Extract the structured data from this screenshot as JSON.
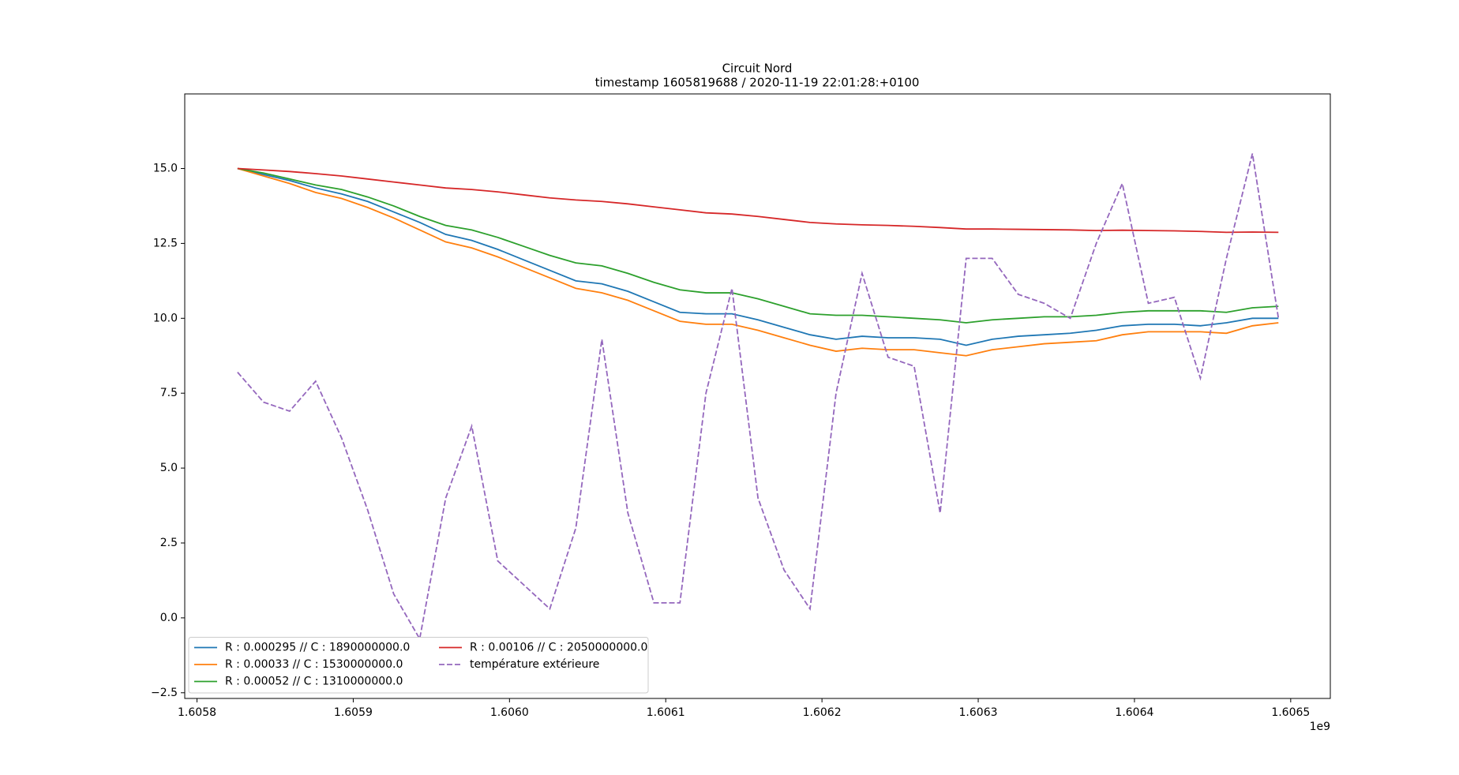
{
  "chart_data": {
    "type": "line",
    "title": "Circuit Nord",
    "subtitle": "timestamp 1605819688 / 2020-11-19 22:01:28:+0100",
    "x_offset_label": "1e9",
    "xlim": [
      1605792155,
      1606525350
    ],
    "ylim": [
      -2.69,
      17.49
    ],
    "xticks": [
      {
        "value": 1605800000,
        "label": "1.6058"
      },
      {
        "value": 1605900000,
        "label": "1.6059"
      },
      {
        "value": 1606000000,
        "label": "1.6060"
      },
      {
        "value": 1606100000,
        "label": "1.6061"
      },
      {
        "value": 1606200000,
        "label": "1.6062"
      },
      {
        "value": 1606300000,
        "label": "1.6063"
      },
      {
        "value": 1606400000,
        "label": "1.6064"
      },
      {
        "value": 1606500000,
        "label": "1.6065"
      }
    ],
    "yticks": [
      {
        "value": -2.5,
        "label": "−2.5"
      },
      {
        "value": 0,
        "label": "0.0"
      },
      {
        "value": 2.5,
        "label": "2.5"
      },
      {
        "value": 5,
        "label": "5.0"
      },
      {
        "value": 7.5,
        "label": "7.5"
      },
      {
        "value": 10,
        "label": "10.0"
      },
      {
        "value": 12.5,
        "label": "12.5"
      },
      {
        "value": 15,
        "label": "15.0"
      }
    ],
    "grid": false,
    "legend": "lower left",
    "x": [
      1605825950,
      1605842605,
      1605859260,
      1605875915,
      1605892570,
      1605909225,
      1605925880,
      1605942535,
      1605959190,
      1605975845,
      1605992500,
      1606009155,
      1606025810,
      1606042465,
      1606059120,
      1606075775,
      1606092430,
      1606109085,
      1606125740,
      1606142395,
      1606159050,
      1606175705,
      1606192360,
      1606209015,
      1606225670,
      1606242325,
      1606258980,
      1606275635,
      1606292290,
      1606308945,
      1606325600,
      1606342255,
      1606358910,
      1606375565,
      1606392220,
      1606408875,
      1606425530,
      1606442185,
      1606458840,
      1606475495,
      1606492150
    ],
    "series": [
      {
        "name": "R : 0.000295 // C : 1890000000.0",
        "color": "#1f77b4",
        "dash": "solid",
        "values": [
          15.0,
          14.8,
          14.6,
          14.35,
          14.15,
          13.9,
          13.55,
          13.2,
          12.8,
          12.6,
          12.3,
          11.95,
          11.6,
          11.25,
          11.15,
          10.9,
          10.55,
          10.2,
          10.15,
          10.15,
          9.95,
          9.7,
          9.45,
          9.3,
          9.4,
          9.35,
          9.35,
          9.3,
          9.1,
          9.3,
          9.4,
          9.45,
          9.5,
          9.6,
          9.75,
          9.8,
          9.8,
          9.75,
          9.85,
          10.0,
          10.0
        ]
      },
      {
        "name": "R : 0.00033 // C : 1530000000.0",
        "color": "#ff7f0e",
        "dash": "solid",
        "values": [
          15.0,
          14.75,
          14.5,
          14.2,
          14.0,
          13.7,
          13.35,
          12.95,
          12.55,
          12.35,
          12.05,
          11.7,
          11.35,
          11.0,
          10.85,
          10.6,
          10.25,
          9.9,
          9.8,
          9.8,
          9.6,
          9.35,
          9.1,
          8.9,
          9.0,
          8.95,
          8.95,
          8.85,
          8.75,
          8.95,
          9.05,
          9.15,
          9.2,
          9.25,
          9.45,
          9.55,
          9.55,
          9.55,
          9.5,
          9.75,
          9.85
        ]
      },
      {
        "name": "R : 0.00052 // C : 1310000000.0",
        "color": "#2ca02c",
        "dash": "solid",
        "values": [
          15.0,
          14.85,
          14.65,
          14.45,
          14.3,
          14.05,
          13.75,
          13.4,
          13.1,
          12.95,
          12.7,
          12.4,
          12.1,
          11.85,
          11.75,
          11.5,
          11.2,
          10.95,
          10.85,
          10.85,
          10.65,
          10.4,
          10.15,
          10.1,
          10.1,
          10.05,
          10.0,
          9.95,
          9.85,
          9.95,
          10.0,
          10.05,
          10.05,
          10.1,
          10.2,
          10.25,
          10.25,
          10.25,
          10.2,
          10.35,
          10.4
        ]
      },
      {
        "name": "R : 0.00106 // C : 2050000000.0",
        "color": "#d62728",
        "dash": "solid",
        "values": [
          15.0,
          14.95,
          14.9,
          14.83,
          14.75,
          14.65,
          14.55,
          14.45,
          14.35,
          14.3,
          14.22,
          14.12,
          14.02,
          13.95,
          13.9,
          13.82,
          13.72,
          13.62,
          13.52,
          13.48,
          13.4,
          13.3,
          13.2,
          13.15,
          13.12,
          13.1,
          13.07,
          13.03,
          12.98,
          12.98,
          12.97,
          12.96,
          12.95,
          12.93,
          12.94,
          12.93,
          12.92,
          12.9,
          12.87,
          12.88,
          12.87
        ]
      },
      {
        "name": "température extérieure",
        "color": "#9467bd",
        "dash": "dashed",
        "values": [
          8.2,
          7.2,
          6.9,
          7.9,
          6.0,
          3.6,
          0.8,
          -0.7,
          4.0,
          6.4,
          1.9,
          1.1,
          0.3,
          3.0,
          9.3,
          3.5,
          0.5,
          0.5,
          7.5,
          11.0,
          4.0,
          1.6,
          0.3,
          7.5,
          11.5,
          8.7,
          8.4,
          3.5,
          12.0,
          12.0,
          10.8,
          10.5,
          10.0,
          12.5,
          14.5,
          10.5,
          10.7,
          8.0,
          12.0,
          15.5,
          10.0
        ]
      }
    ]
  }
}
